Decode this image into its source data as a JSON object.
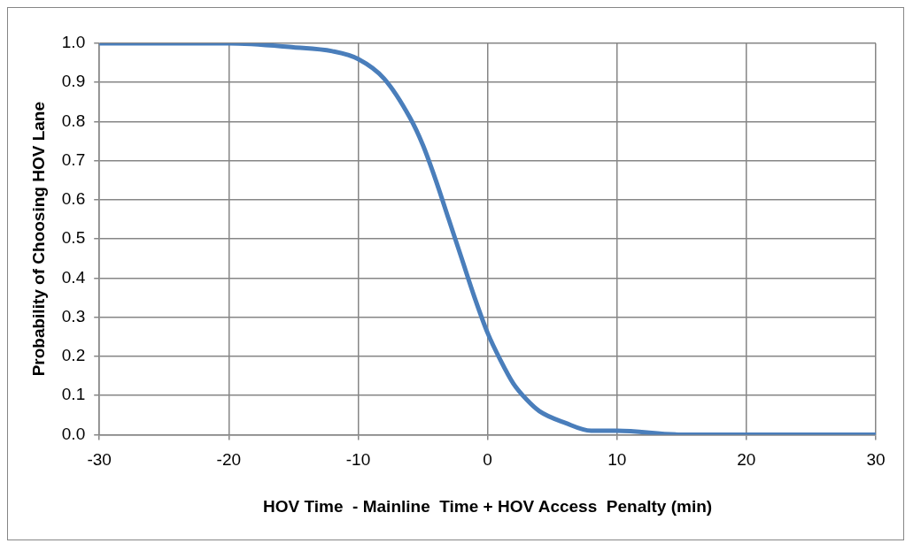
{
  "chart_data": {
    "type": "line",
    "xlabel": "HOV Time  - Mainline  Time + HOV Access  Penalty (min)",
    "ylabel": "Probability of Choosing HOV Lane",
    "x": [
      -30,
      -20,
      -15,
      -12,
      -10,
      -8,
      -6,
      -5,
      -4,
      -3,
      -2,
      -1,
      0,
      1,
      2,
      3,
      4,
      6,
      8,
      10,
      15,
      20,
      30
    ],
    "series": [
      {
        "color": "#4a7ebb",
        "values": [
          1.0,
          1.0,
          0.99,
          0.98,
          0.96,
          0.91,
          0.81,
          0.74,
          0.65,
          0.55,
          0.45,
          0.35,
          0.26,
          0.19,
          0.13,
          0.09,
          0.06,
          0.03,
          0.01,
          0.01,
          0.0,
          0.0,
          0.0
        ]
      }
    ],
    "xlim": [
      -30,
      30
    ],
    "xticks": [
      -30,
      -20,
      -10,
      0,
      10,
      20,
      30
    ],
    "ylim": [
      0,
      1
    ],
    "yticks": [
      {
        "value": 0,
        "label": "0.0"
      },
      {
        "value": 0.1,
        "label": "0.1"
      },
      {
        "value": 0.2,
        "label": "0.2"
      },
      {
        "value": 0.3,
        "label": "0.3"
      },
      {
        "value": 0.4,
        "label": "0.4"
      },
      {
        "value": 0.5,
        "label": "0.5"
      },
      {
        "value": 0.6,
        "label": "0.6"
      },
      {
        "value": 0.7,
        "label": "0.7"
      },
      {
        "value": 0.8,
        "label": "0.8"
      },
      {
        "value": 0.9,
        "label": "0.9"
      },
      {
        "value": 1,
        "label": "1.0"
      }
    ],
    "grid": true,
    "legend": false,
    "marker": "none",
    "line_style": "solid"
  }
}
